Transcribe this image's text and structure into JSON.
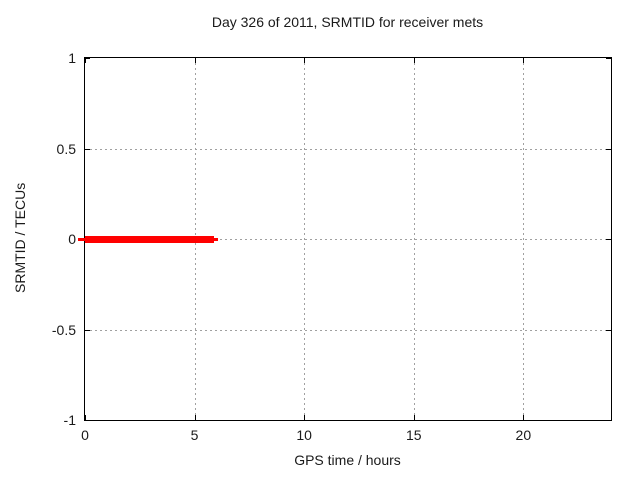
{
  "chart": {
    "colors": {
      "series": "#ff0000",
      "grid": "#a0a0a0",
      "border": "#000000",
      "text": "#1a1a1a",
      "background": "#ffffff"
    }
  },
  "chart_data": {
    "type": "line",
    "title": "Day 326 of 2011, SRMTID for receiver mets",
    "xlabel": "GPS time / hours",
    "ylabel": "SRMTID / TECUs",
    "xlim": [
      0,
      24
    ],
    "ylim": [
      -1,
      1
    ],
    "grid": true,
    "grid_style": "dotted",
    "legend": "none",
    "xticks": [
      {
        "v": 0,
        "label": "0"
      },
      {
        "v": 5,
        "label": "5"
      },
      {
        "v": 10,
        "label": "10"
      },
      {
        "v": 15,
        "label": "15"
      },
      {
        "v": 20,
        "label": "20"
      }
    ],
    "yticks": [
      {
        "v": 1,
        "label": "1"
      },
      {
        "v": 0.5,
        "label": "0.5"
      },
      {
        "v": 0,
        "label": "0"
      },
      {
        "v": -0.5,
        "label": "-0.5"
      },
      {
        "v": -1,
        "label": "-1"
      }
    ],
    "series": [
      {
        "name": "SRMTID",
        "color": "#ff0000",
        "x": [
          0,
          5.9
        ],
        "y": [
          0,
          0
        ],
        "description": "thick horizontal red line at SRMTID = 0 TECUs from 0 to ~5.9 hours"
      }
    ]
  }
}
